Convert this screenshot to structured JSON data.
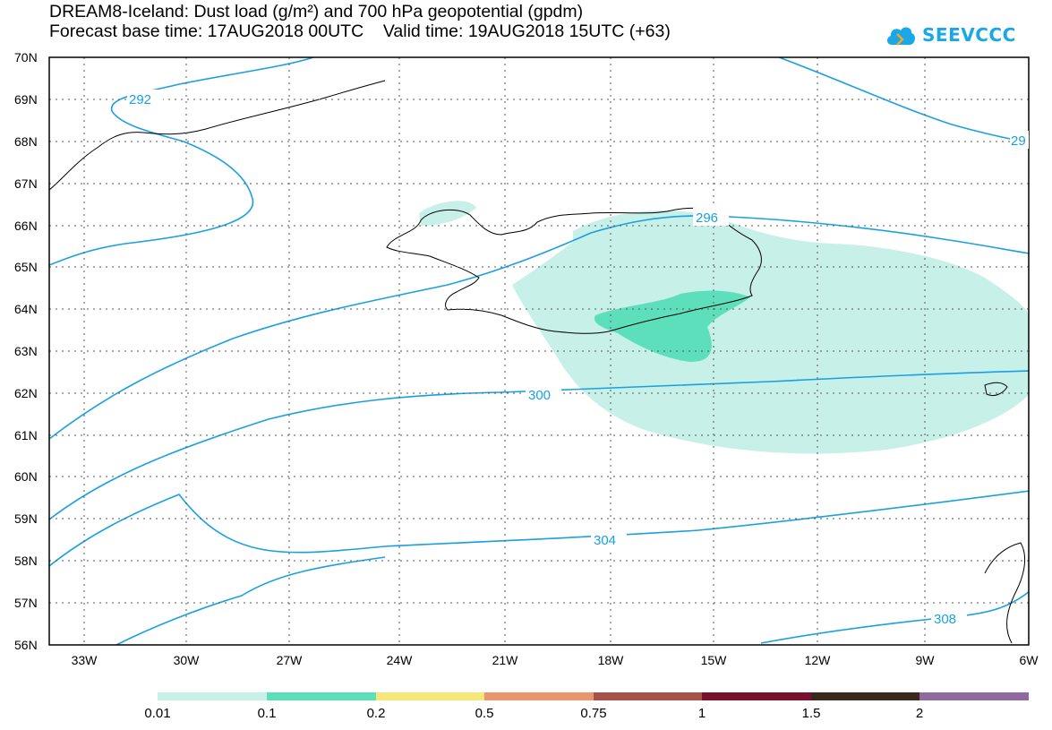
{
  "header": {
    "title_line1": "DREAM8-Iceland: Dust load (g/m²) and 700 hPa geopotential (gpdm)",
    "title_line2": "Forecast base time: 17AUG2018 00UTC    Valid time: 19AUG2018 15UTC (+63)"
  },
  "logo": {
    "text": "SEEVCCC",
    "icon": "cloud-icon",
    "color": "#1aa7e8"
  },
  "axes": {
    "lat_labels": [
      "70N",
      "69N",
      "68N",
      "67N",
      "66N",
      "65N",
      "64N",
      "63N",
      "62N",
      "61N",
      "60N",
      "59N",
      "58N",
      "57N",
      "56N"
    ],
    "lon_labels": [
      "33W",
      "30W",
      "27W",
      "24W",
      "21W",
      "18W",
      "15W",
      "12W",
      "9W",
      "6W"
    ]
  },
  "contours": {
    "color": "#1aa0e0",
    "labels": [
      "292",
      "296",
      "29",
      "300",
      "304",
      "308"
    ]
  },
  "colorbar": {
    "labels": [
      "0.01",
      "0.1",
      "0.2",
      "0.5",
      "0.75",
      "1",
      "1.5",
      "2"
    ],
    "colors": [
      "#c6f0e8",
      "#5ddfbc",
      "#f5e77a",
      "#e9966f",
      "#a6514a",
      "#7a1030",
      "#3a2a1e",
      "#8f6a9e"
    ]
  },
  "dust": {
    "light_color": "#c6f0e8",
    "medium_color": "#5ddfbc"
  }
}
